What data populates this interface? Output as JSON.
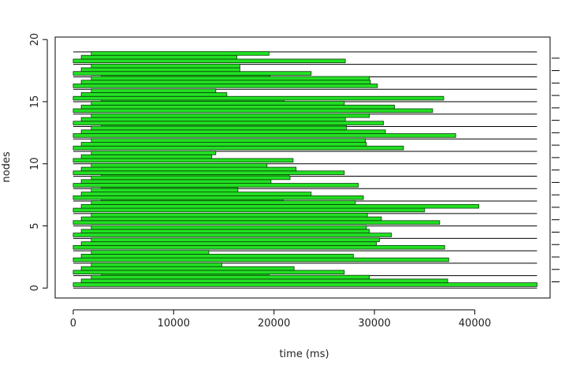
{
  "chart_data": {
    "type": "gantt-bar",
    "xlabel": "time (ms)",
    "ylabel": "nodes",
    "xlim": [
      -1800,
      47500
    ],
    "ylim": [
      -0.8,
      20.2
    ],
    "xticks": [
      0,
      10000,
      20000,
      30000,
      40000
    ],
    "xtick_labels": [
      "0",
      "10000",
      "20000",
      "30000",
      "40000"
    ],
    "yticks": [
      0,
      5,
      10,
      15,
      20
    ],
    "ytick_labels": [
      "0",
      "5",
      "10",
      "15",
      "20"
    ],
    "right_ticks_count": 19,
    "line_color": "#000000",
    "bar_fill": "#22e022",
    "bar_stroke": "#0a3a0a",
    "nodes": [
      {
        "node": 0,
        "bars": [
          [
            0,
            46200
          ],
          [
            800,
            37300
          ],
          [
            1800,
            29500
          ],
          [
            2800,
            19500
          ]
        ]
      },
      {
        "node": 1,
        "bars": [
          [
            0,
            27000
          ],
          [
            800,
            22000
          ],
          [
            1800,
            14800
          ]
        ]
      },
      {
        "node": 2,
        "bars": [
          [
            0,
            37400
          ],
          [
            800,
            27900
          ],
          [
            1800,
            13500
          ]
        ]
      },
      {
        "node": 3,
        "bars": [
          [
            0,
            37000
          ],
          [
            800,
            30200
          ],
          [
            1800,
            30500
          ]
        ]
      },
      {
        "node": 4,
        "bars": [
          [
            0,
            31700
          ],
          [
            800,
            29500
          ],
          [
            1800,
            29200
          ]
        ]
      },
      {
        "node": 5,
        "bars": [
          [
            0,
            36500
          ],
          [
            800,
            30700
          ],
          [
            1800,
            29300
          ]
        ]
      },
      {
        "node": 6,
        "bars": [
          [
            0,
            35000
          ],
          [
            800,
            40400
          ],
          [
            1800,
            28100
          ],
          [
            2800,
            20900
          ]
        ]
      },
      {
        "node": 7,
        "bars": [
          [
            0,
            28900
          ],
          [
            800,
            23700
          ],
          [
            1800,
            16400
          ],
          [
            2800,
            16400
          ]
        ]
      },
      {
        "node": 8,
        "bars": [
          [
            0,
            28400
          ],
          [
            800,
            19700
          ],
          [
            1800,
            21600
          ],
          [
            2800,
            21500
          ]
        ]
      },
      {
        "node": 9,
        "bars": [
          [
            0,
            27000
          ],
          [
            800,
            22200
          ],
          [
            1800,
            19300
          ]
        ]
      },
      {
        "node": 10,
        "bars": [
          [
            0,
            21900
          ],
          [
            800,
            13800
          ],
          [
            1800,
            14200
          ]
        ]
      },
      {
        "node": 11,
        "bars": [
          [
            0,
            32900
          ],
          [
            800,
            29200
          ],
          [
            1800,
            29100
          ]
        ]
      },
      {
        "node": 12,
        "bars": [
          [
            0,
            38100
          ],
          [
            800,
            31100
          ],
          [
            1800,
            27200
          ],
          [
            2800,
            27200
          ]
        ]
      },
      {
        "node": 13,
        "bars": [
          [
            0,
            30900
          ],
          [
            800,
            27100
          ],
          [
            1800,
            29500
          ]
        ]
      },
      {
        "node": 14,
        "bars": [
          [
            0,
            35800
          ],
          [
            800,
            32000
          ],
          [
            1800,
            27000
          ],
          [
            2800,
            21000
          ]
        ]
      },
      {
        "node": 15,
        "bars": [
          [
            0,
            36900
          ],
          [
            800,
            15300
          ],
          [
            1800,
            14200
          ]
        ]
      },
      {
        "node": 16,
        "bars": [
          [
            0,
            30300
          ],
          [
            800,
            29600
          ],
          [
            1800,
            29500
          ],
          [
            2800,
            19600
          ]
        ]
      },
      {
        "node": 17,
        "bars": [
          [
            0,
            23700
          ],
          [
            800,
            16600
          ],
          [
            1800,
            16600
          ]
        ]
      },
      {
        "node": 18,
        "bars": [
          [
            0,
            27100
          ],
          [
            800,
            16300
          ],
          [
            1800,
            19500
          ]
        ]
      },
      {
        "node": 19,
        "bars": []
      }
    ]
  }
}
